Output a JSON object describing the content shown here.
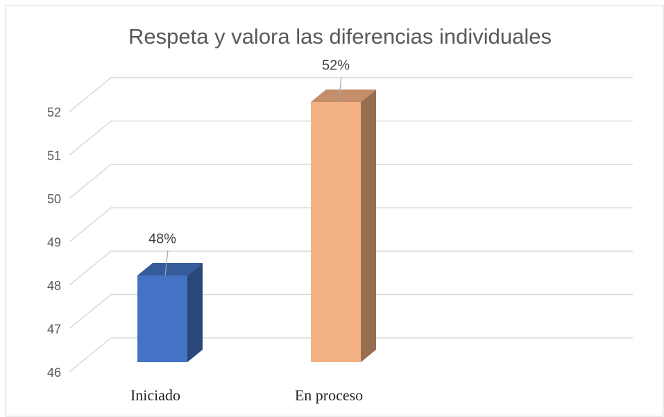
{
  "chart_data": {
    "type": "bar3d",
    "title": "Respeta y valora las diferencias individuales",
    "categories": [
      "Iniciado",
      "En proceso"
    ],
    "values": [
      48,
      52
    ],
    "value_labels": [
      "48%",
      "52%"
    ],
    "colors": [
      "#4472c4",
      "#f4b183"
    ],
    "ylim": [
      46,
      52
    ],
    "yticks": [
      46,
      47,
      48,
      49,
      50,
      51,
      52
    ],
    "grid": true
  }
}
